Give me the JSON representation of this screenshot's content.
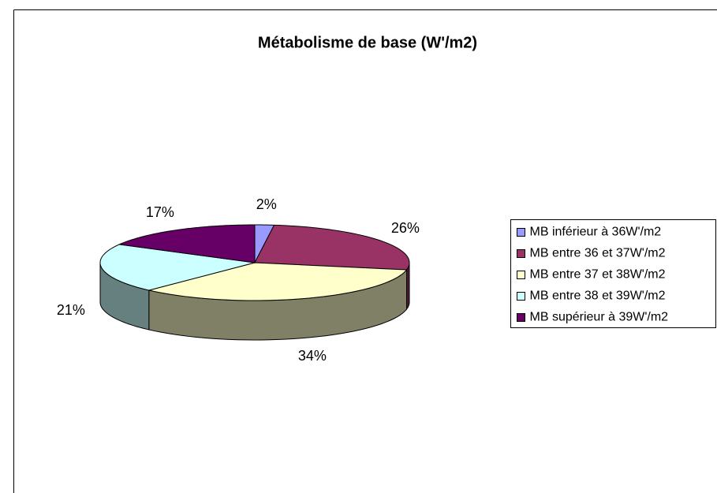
{
  "chart_data": {
    "type": "pie",
    "title": "Métabolisme de base (W'/m2)",
    "categories": [
      "MB inférieur à 36W'/m2",
      "MB entre 36 et 37W'/m2",
      "MB entre 37 et 38W'/m2",
      "MB entre 38 et 39W'/m2",
      "MB supérieur à 39W'/m2"
    ],
    "values": [
      2,
      26,
      34,
      21,
      17
    ],
    "value_labels": [
      "2%",
      "26%",
      "34%",
      "21%",
      "17%"
    ],
    "colors": [
      "#9999ff",
      "#993366",
      "#ffffcc",
      "#ccffff",
      "#660066"
    ],
    "legend": "right"
  }
}
